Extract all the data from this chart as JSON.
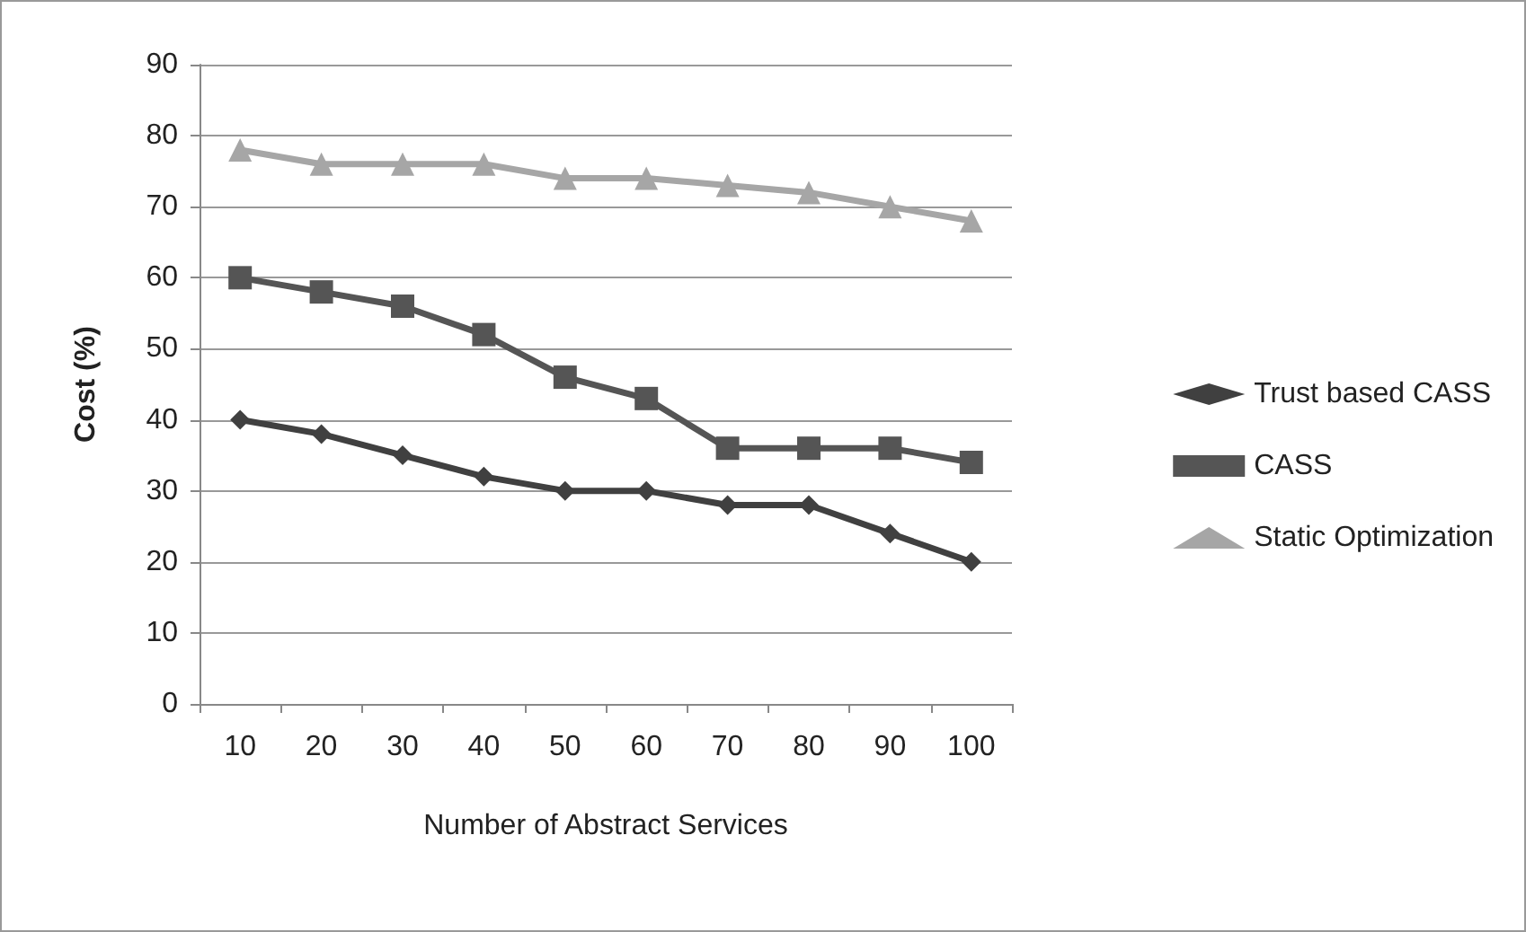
{
  "chart_data": {
    "type": "line",
    "xlabel": "Number of Abstract Services",
    "ylabel": "Cost (%)",
    "categories": [
      "10",
      "20",
      "30",
      "40",
      "50",
      "60",
      "70",
      "80",
      "90",
      "100"
    ],
    "series": [
      {
        "name": "Trust based CASS",
        "color": "#404040",
        "marker": "diamond",
        "values": [
          40,
          38,
          35,
          32,
          30,
          30,
          28,
          28,
          24,
          20
        ]
      },
      {
        "name": "CASS",
        "color": "#555555",
        "marker": "square",
        "values": [
          60,
          58,
          56,
          52,
          46,
          43,
          36,
          36,
          36,
          34
        ]
      },
      {
        "name": "Static Optimization",
        "color": "#a6a6a6",
        "marker": "triangle",
        "values": [
          78,
          76,
          76,
          76,
          74,
          74,
          73,
          72,
          70,
          68
        ]
      }
    ],
    "ylim": [
      0,
      90
    ],
    "yticks": [
      0,
      10,
      20,
      30,
      40,
      50,
      60,
      70,
      80,
      90
    ],
    "grid": "y",
    "legend": "right"
  }
}
